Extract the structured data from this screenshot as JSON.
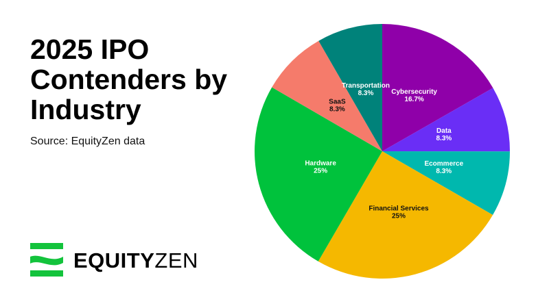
{
  "chart_data": {
    "type": "pie",
    "title": "2025 IPO Contenders by Industry",
    "subtitle": "Source: EquityZen data",
    "categories": [
      "Cybersecurity",
      "Data",
      "Ecommerce",
      "Financial Services",
      "Hardware",
      "SaaS",
      "Transportation"
    ],
    "values": [
      16.7,
      8.3,
      8.3,
      25,
      25,
      8.3,
      8.3
    ],
    "value_labels": [
      "16.7%",
      "8.3%",
      "8.3%",
      "25%",
      "25%",
      "8.3%",
      "8.3%"
    ],
    "colors": [
      "#8f00a9",
      "#6a2ef6",
      "#00b8ae",
      "#f5b800",
      "#00c23c",
      "#f57b6b",
      "#00827a"
    ]
  },
  "brand": {
    "name_bold": "EQUITY",
    "name_light": "ZEN"
  }
}
